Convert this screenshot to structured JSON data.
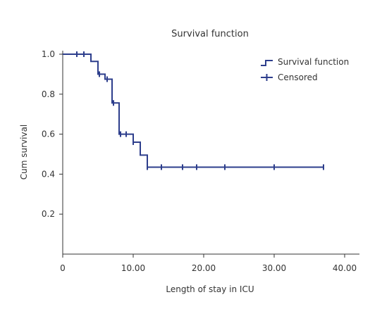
{
  "chart_data": {
    "type": "line",
    "title": "Survival function",
    "xlabel": "Length of stay in ICU",
    "ylabel": "Cum survival",
    "xlim": [
      0,
      40
    ],
    "ylim": [
      0.0,
      1.05
    ],
    "x_ticks": [
      {
        "value": 0,
        "label": "0"
      },
      {
        "value": 10,
        "label": "10.00"
      },
      {
        "value": 20,
        "label": "20.00"
      },
      {
        "value": 30,
        "label": "30.00"
      },
      {
        "value": 40,
        "label": "40.00"
      }
    ],
    "y_ticks": [
      {
        "value": 0.2,
        "label": "0.2"
      },
      {
        "value": 0.4,
        "label": "0.4"
      },
      {
        "value": 0.6,
        "label": "0.6"
      },
      {
        "value": 0.8,
        "label": "0.8"
      },
      {
        "value": 1.0,
        "label": "1.0"
      }
    ],
    "grid": false,
    "legend_position": "top-right",
    "series": [
      {
        "name": "Survival function",
        "kind": "step",
        "color": "#2d3e8c",
        "points": [
          {
            "x": 0,
            "y": 1.0
          },
          {
            "x": 4,
            "y": 0.964
          },
          {
            "x": 5,
            "y": 0.9
          },
          {
            "x": 6,
            "y": 0.875
          },
          {
            "x": 7,
            "y": 0.756
          },
          {
            "x": 8,
            "y": 0.6
          },
          {
            "x": 10,
            "y": 0.56
          },
          {
            "x": 11,
            "y": 0.495
          },
          {
            "x": 12,
            "y": 0.435
          },
          {
            "x": 37,
            "y": 0.435
          }
        ]
      },
      {
        "name": "Censored",
        "kind": "censor-marks",
        "color": "#2d3e8c",
        "points": [
          {
            "x": 2,
            "y": 1.0
          },
          {
            "x": 3,
            "y": 1.0
          },
          {
            "x": 5.2,
            "y": 0.9
          },
          {
            "x": 6.3,
            "y": 0.875
          },
          {
            "x": 7.2,
            "y": 0.756
          },
          {
            "x": 8.2,
            "y": 0.6
          },
          {
            "x": 9,
            "y": 0.6
          },
          {
            "x": 10,
            "y": 0.56
          },
          {
            "x": 12,
            "y": 0.435
          },
          {
            "x": 14,
            "y": 0.435
          },
          {
            "x": 17,
            "y": 0.435
          },
          {
            "x": 19,
            "y": 0.435
          },
          {
            "x": 23,
            "y": 0.435
          },
          {
            "x": 30,
            "y": 0.435
          },
          {
            "x": 37,
            "y": 0.435
          }
        ]
      }
    ]
  }
}
